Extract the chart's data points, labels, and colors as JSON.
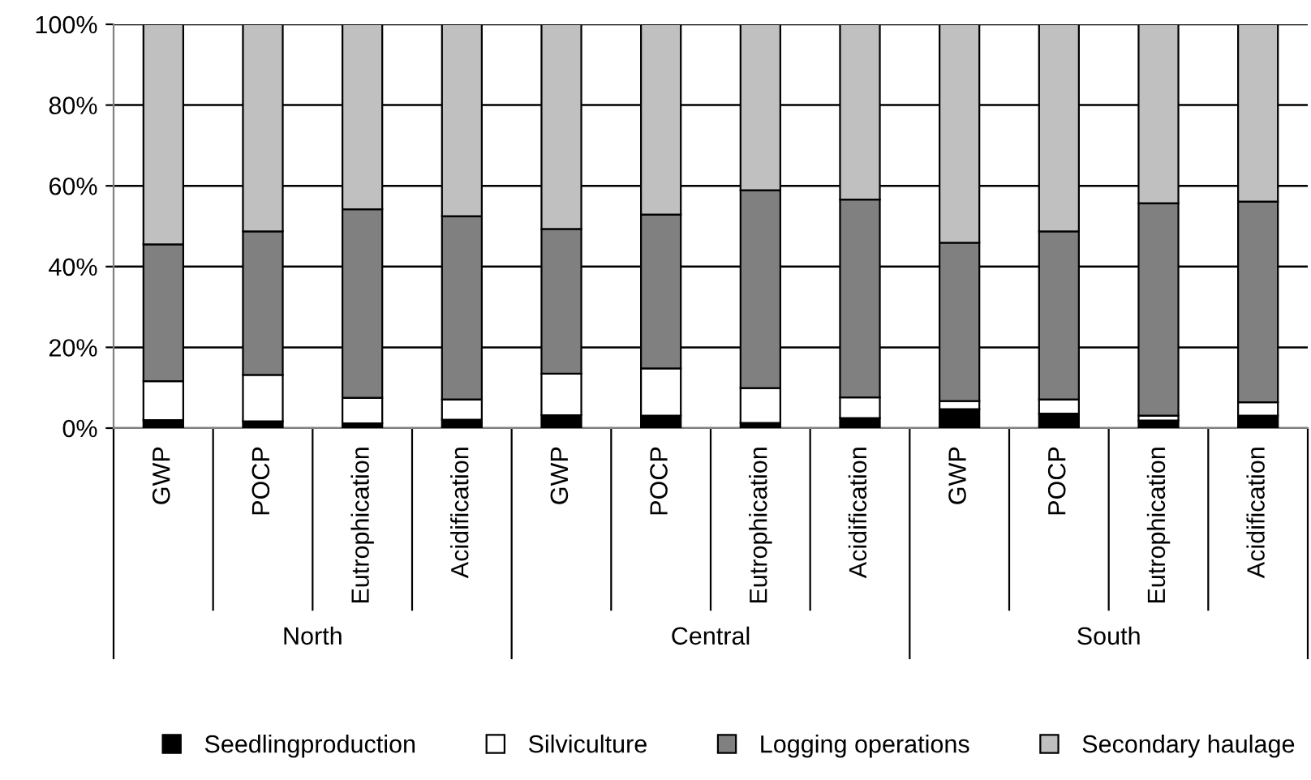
{
  "chart_data": {
    "type": "bar",
    "stacked": true,
    "categories": [
      "GWP",
      "POCP",
      "Eutrophication",
      "Acidification",
      "GWP",
      "POCP",
      "Eutrophication",
      "Acidification",
      "GWP",
      "POCP",
      "Eutrophication",
      "Acidification"
    ],
    "annotations": [
      "North",
      "Central",
      "South"
    ],
    "series": [
      {
        "name": "Seedlingproduction",
        "color": "#000000",
        "values": [
          2.0,
          1.7,
          1.2,
          2.1,
          3.2,
          3.1,
          1.3,
          2.5,
          4.7,
          3.6,
          1.9,
          3.1
        ]
      },
      {
        "name": "Silviculture",
        "color": "#ffffff",
        "values": [
          9.6,
          11.5,
          6.3,
          5.0,
          10.3,
          11.7,
          8.6,
          5.1,
          2.0,
          3.5,
          1.2,
          3.3
        ]
      },
      {
        "name": "Logging operations",
        "color": "#808080",
        "values": [
          33.9,
          35.5,
          46.7,
          45.4,
          35.8,
          38.1,
          49.0,
          49.0,
          39.2,
          41.6,
          52.6,
          49.7
        ]
      },
      {
        "name": "Secondary haulage",
        "color": "#c0c0c0",
        "values": [
          54.5,
          51.3,
          45.8,
          47.5,
          50.7,
          47.1,
          41.1,
          43.4,
          54.1,
          51.3,
          44.3,
          43.9
        ]
      }
    ],
    "ylim": [
      0,
      100
    ],
    "yticks": [
      {
        "value": 0,
        "label": "0%"
      },
      {
        "value": 20,
        "label": "20%"
      },
      {
        "value": 40,
        "label": "40%"
      },
      {
        "value": 60,
        "label": "60%"
      },
      {
        "value": 80,
        "label": "80%"
      },
      {
        "value": 100,
        "label": "100%"
      }
    ],
    "grid": "y",
    "legend": "bottom",
    "marker": "square"
  }
}
